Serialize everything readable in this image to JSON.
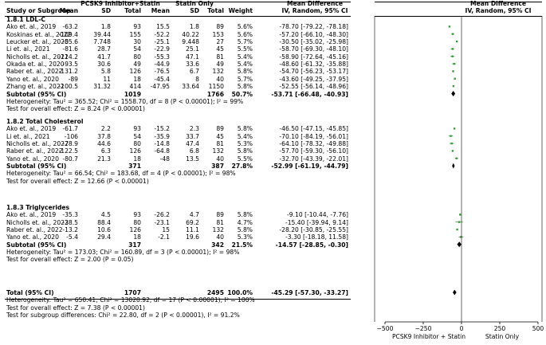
{
  "headers": {
    "study": "Study or Subgroup",
    "pcsk9": "PCSK9 Inhibitor+Statin",
    "statin": "Statin Only",
    "mean": "Mean",
    "sd": "SD",
    "total": "Total",
    "weight": "Weight",
    "md_left_1": "Mean Difference",
    "md_left_2": "IV, Random, 95% CI",
    "md_right_1": "Mean Difference",
    "md_right_2": "IV, Random, 95% CI"
  },
  "subgroups": [
    {
      "title": "1.8.1 LDL-C",
      "studies": [
        {
          "study": "Ako et. al., 2019",
          "m1": "-63.2",
          "sd1": "1.8",
          "n1": "93",
          "m2": "15.5",
          "sd2": "1.8",
          "n2": "89",
          "weight": "5.6%",
          "ci": "-78.70 [-79.22, -78.18]",
          "md": -78.7,
          "lo": -79.22,
          "hi": -78.18
        },
        {
          "study": "Koskinas et. al., 2022",
          "m1": "-109.4",
          "sd1": "39.44",
          "n1": "155",
          "m2": "-52.2",
          "sd2": "40.22",
          "n2": "153",
          "weight": "5.6%",
          "ci": "-57.20 [-66.10, -48.30]",
          "md": -57.2,
          "lo": -66.1,
          "hi": -48.3
        },
        {
          "study": "Leucker et. al., 2020",
          "m1": "-55.6",
          "sd1": "7.748",
          "n1": "30",
          "m2": "-25.1",
          "sd2": "9.448",
          "n2": "27",
          "weight": "5.7%",
          "ci": "-30.50 [-35.02, -25.98]",
          "md": -30.5,
          "lo": -35.02,
          "hi": -25.98
        },
        {
          "study": "Li et. al., 2021",
          "m1": "-81.6",
          "sd1": "28.7",
          "n1": "54",
          "m2": "-22.9",
          "sd2": "25.1",
          "n2": "45",
          "weight": "5.5%",
          "ci": "-58.70 [-69.30, -48.10]",
          "md": -58.7,
          "lo": -69.3,
          "hi": -48.1
        },
        {
          "study": "Nicholls et. al., 2022",
          "m1": "-114.2",
          "sd1": "41.7",
          "n1": "80",
          "m2": "-55.3",
          "sd2": "47.1",
          "n2": "81",
          "weight": "5.4%",
          "ci": "-58.90 [-72.64, -45.16]",
          "md": -58.9,
          "lo": -72.64,
          "hi": -45.16
        },
        {
          "study": "Okada et. al., 2020",
          "m1": "-93.5",
          "sd1": "30.6",
          "n1": "49",
          "m2": "-44.9",
          "sd2": "33.6",
          "n2": "49",
          "weight": "5.4%",
          "ci": "-48.60 [-61.32, -35.88]",
          "md": -48.6,
          "lo": -61.32,
          "hi": -35.88
        },
        {
          "study": "Raber et. al., 2022",
          "m1": "-131.2",
          "sd1": "5.8",
          "n1": "126",
          "m2": "-76.5",
          "sd2": "6.7",
          "n2": "132",
          "weight": "5.8%",
          "ci": "-54.70 [-56.23, -53.17]",
          "md": -54.7,
          "lo": -56.23,
          "hi": -53.17
        },
        {
          "study": "Yano et. al., 2020",
          "m1": "-89",
          "sd1": "11",
          "n1": "18",
          "m2": "-45.4",
          "sd2": "8",
          "n2": "40",
          "weight": "5.7%",
          "ci": "-43.60 [-49.25, -37.95]",
          "md": -43.6,
          "lo": -49.25,
          "hi": -37.95
        },
        {
          "study": "Zhang et. al., 2022",
          "m1": "-100.5",
          "sd1": "31.32",
          "n1": "414",
          "m2": "-47.95",
          "sd2": "33.64",
          "n2": "1150",
          "weight": "5.8%",
          "ci": "-52.55 [-56.14, -48.96]",
          "md": -52.55,
          "lo": -56.14,
          "hi": -48.96
        }
      ],
      "subtotal": {
        "label": "Subtotal (95% CI)",
        "n1": "1019",
        "n2": "1766",
        "weight": "50.7%",
        "ci": "-53.71 [-66.48, -40.93]",
        "md": -53.71,
        "lo": -66.48,
        "hi": -40.93
      },
      "heterogeneity": "Heterogeneity: Tau² = 365.52; Chi² = 1558.70, df = 8 (P < 0.00001); I² = 99%",
      "overall": "Test for overall effect: Z = 8.24 (P < 0.00001)"
    },
    {
      "title": "1.8.2 Total Cholesterol",
      "studies": [
        {
          "study": "Ako et. al., 2019",
          "m1": "-61.7",
          "sd1": "2.2",
          "n1": "93",
          "m2": "-15.2",
          "sd2": "2.3",
          "n2": "89",
          "weight": "5.8%",
          "ci": "-46.50 [-47.15, -45.85]",
          "md": -46.5,
          "lo": -47.15,
          "hi": -45.85
        },
        {
          "study": "Li et. al., 2021",
          "m1": "-106",
          "sd1": "37.8",
          "n1": "54",
          "m2": "-35.9",
          "sd2": "33.7",
          "n2": "45",
          "weight": "5.4%",
          "ci": "-70.10 [-84.19, -56.01]",
          "md": -70.1,
          "lo": -84.19,
          "hi": -56.01
        },
        {
          "study": "Nicholls et. al., 2022",
          "m1": "-78.9",
          "sd1": "44.6",
          "n1": "80",
          "m2": "-14.8",
          "sd2": "47.4",
          "n2": "81",
          "weight": "5.3%",
          "ci": "-64.10 [-78.32, -49.88]",
          "md": -64.1,
          "lo": -78.32,
          "hi": -49.88
        },
        {
          "study": "Raber et. al., 2022",
          "m1": "-122.5",
          "sd1": "6.3",
          "n1": "126",
          "m2": "-64.8",
          "sd2": "6.8",
          "n2": "132",
          "weight": "5.8%",
          "ci": "-57.70 [-59.30, -56.10]",
          "md": -57.7,
          "lo": -59.3,
          "hi": -56.1
        },
        {
          "study": "Yano et. al., 2020",
          "m1": "-80.7",
          "sd1": "21.3",
          "n1": "18",
          "m2": "-48",
          "sd2": "13.5",
          "n2": "40",
          "weight": "5.5%",
          "ci": "-32.70 [-43.39, -22.01]",
          "md": -32.7,
          "lo": -43.39,
          "hi": -22.01
        }
      ],
      "subtotal": {
        "label": "Subtotal (95% CI)",
        "n1": "371",
        "n2": "387",
        "weight": "27.8%",
        "ci": "-52.99 [-61.19, -44.79]",
        "md": -52.99,
        "lo": -61.19,
        "hi": -44.79
      },
      "heterogeneity": "Heterogeneity: Tau² = 66.54; Chi² = 183.68, df = 4 (P < 0.00001); I² = 98%",
      "overall": "Test for overall effect: Z = 12.66 (P < 0.00001)"
    },
    {
      "title": "1.8.3 Triglycerides",
      "studies": [
        {
          "study": "Ako et. al., 2019",
          "m1": "-35.3",
          "sd1": "4.5",
          "n1": "93",
          "m2": "-26.2",
          "sd2": "4.7",
          "n2": "89",
          "weight": "5.8%",
          "ci": "-9.10 [-10.44, -7.76]",
          "md": -9.1,
          "lo": -10.44,
          "hi": -7.76
        },
        {
          "study": "Nicholls et. al., 2022",
          "m1": "-38.5",
          "sd1": "88.4",
          "n1": "80",
          "m2": "-23.1",
          "sd2": "69.2",
          "n2": "81",
          "weight": "4.7%",
          "ci": "-15.40 [-39.94, 9.14]",
          "md": -15.4,
          "lo": -39.94,
          "hi": 9.14
        },
        {
          "study": "Raber et. al., 2022",
          "m1": "-13.2",
          "sd1": "10.6",
          "n1": "126",
          "m2": "15",
          "sd2": "11.1",
          "n2": "132",
          "weight": "5.8%",
          "ci": "-28.20 [-30.85, -25.55]",
          "md": -28.2,
          "lo": -30.85,
          "hi": -25.55
        },
        {
          "study": "Yano et. al., 2020",
          "m1": "-5.4",
          "sd1": "29.4",
          "n1": "18",
          "m2": "-2.1",
          "sd2": "19.6",
          "n2": "40",
          "weight": "5.3%",
          "ci": "-3.30 [-18.18, 11.58]",
          "md": -3.3,
          "lo": -18.18,
          "hi": 11.58
        }
      ],
      "subtotal": {
        "label": "Subtotal (95% CI)",
        "n1": "317",
        "n2": "342",
        "weight": "21.5%",
        "ci": "-14.57 [-28.85, -0.30]",
        "md": -14.57,
        "lo": -28.85,
        "hi": -0.3
      },
      "heterogeneity": "Heterogeneity: Tau² = 173.03; Chi² = 160.89, df = 3 (P < 0.00001); I² = 98%",
      "overall": "Test for overall effect: Z = 2.00 (P = 0.05)"
    }
  ],
  "total": {
    "label": "Total (95% CI)",
    "n1": "1707",
    "n2": "2495",
    "weight": "100.0%",
    "ci": "-45.29 [-57.30, -33.27]",
    "md": -45.29,
    "lo": -57.3,
    "hi": -33.27
  },
  "total_heterogeneity": "Heterogeneity: Tau² = 650.41; Chi² = 13020.92, df = 17 (P < 0.00001); I² = 100%",
  "total_overall": "Test for overall effect: Z = 7.38 (P < 0.00001)",
  "subgroup_differences": "Test for subgroup differences: Chi² = 22.80, df = 2 (P < 0.00001), I² = 91.2%",
  "axis": {
    "ticks": [
      -500,
      -250,
      0,
      250,
      500
    ],
    "tick_labels": [
      "−500",
      "−250",
      "0",
      "250",
      "500"
    ],
    "label_left": "PCSK9 Inhibitor + Statin",
    "label_right": "Statin Only"
  },
  "colors": {
    "point": "#3a9a3a",
    "diamond": "#000000",
    "line": "#000000"
  },
  "chart_data": {
    "type": "forest",
    "x_range": [
      -500,
      500
    ],
    "x_ticks": [
      -500,
      -250,
      0,
      250,
      500
    ],
    "null_line": 0,
    "xlabel_left": "PCSK9 Inhibitor + Statin",
    "xlabel_right": "Statin Only"
  }
}
